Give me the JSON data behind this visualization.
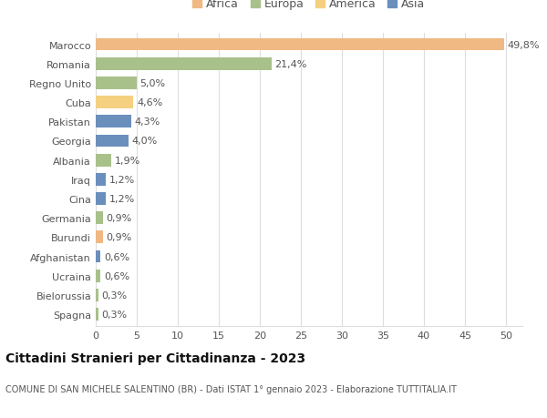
{
  "categories": [
    "Marocco",
    "Romania",
    "Regno Unito",
    "Cuba",
    "Pakistan",
    "Georgia",
    "Albania",
    "Iraq",
    "Cina",
    "Germania",
    "Burundi",
    "Afghanistan",
    "Ucraina",
    "Bielorussia",
    "Spagna"
  ],
  "values": [
    49.8,
    21.4,
    5.0,
    4.6,
    4.3,
    4.0,
    1.9,
    1.2,
    1.2,
    0.9,
    0.9,
    0.6,
    0.6,
    0.3,
    0.3
  ],
  "labels": [
    "49,8%",
    "21,4%",
    "5,0%",
    "4,6%",
    "4,3%",
    "4,0%",
    "1,9%",
    "1,2%",
    "1,2%",
    "0,9%",
    "0,9%",
    "0,6%",
    "0,6%",
    "0,3%",
    "0,3%"
  ],
  "colors": [
    "#f0b984",
    "#a8c18a",
    "#a8c18a",
    "#f5d080",
    "#6b8fbc",
    "#6b8fbc",
    "#a8c18a",
    "#6b8fbc",
    "#6b8fbc",
    "#a8c18a",
    "#f0b984",
    "#6b8fbc",
    "#a8c18a",
    "#a8c18a",
    "#a8c18a"
  ],
  "legend_labels": [
    "Africa",
    "Europa",
    "America",
    "Asia"
  ],
  "legend_colors": [
    "#f0b984",
    "#a8c18a",
    "#f5d080",
    "#6b8fbc"
  ],
  "title": "Cittadini Stranieri per Cittadinanza - 2023",
  "subtitle": "COMUNE DI SAN MICHELE SALENTINO (BR) - Dati ISTAT 1° gennaio 2023 - Elaborazione TUTTITALIA.IT",
  "xlim": [
    0,
    52
  ],
  "background_color": "#ffffff",
  "grid_color": "#dddddd",
  "bar_height": 0.65,
  "label_fontsize": 8,
  "tick_fontsize": 8,
  "title_fontsize": 10,
  "subtitle_fontsize": 7
}
